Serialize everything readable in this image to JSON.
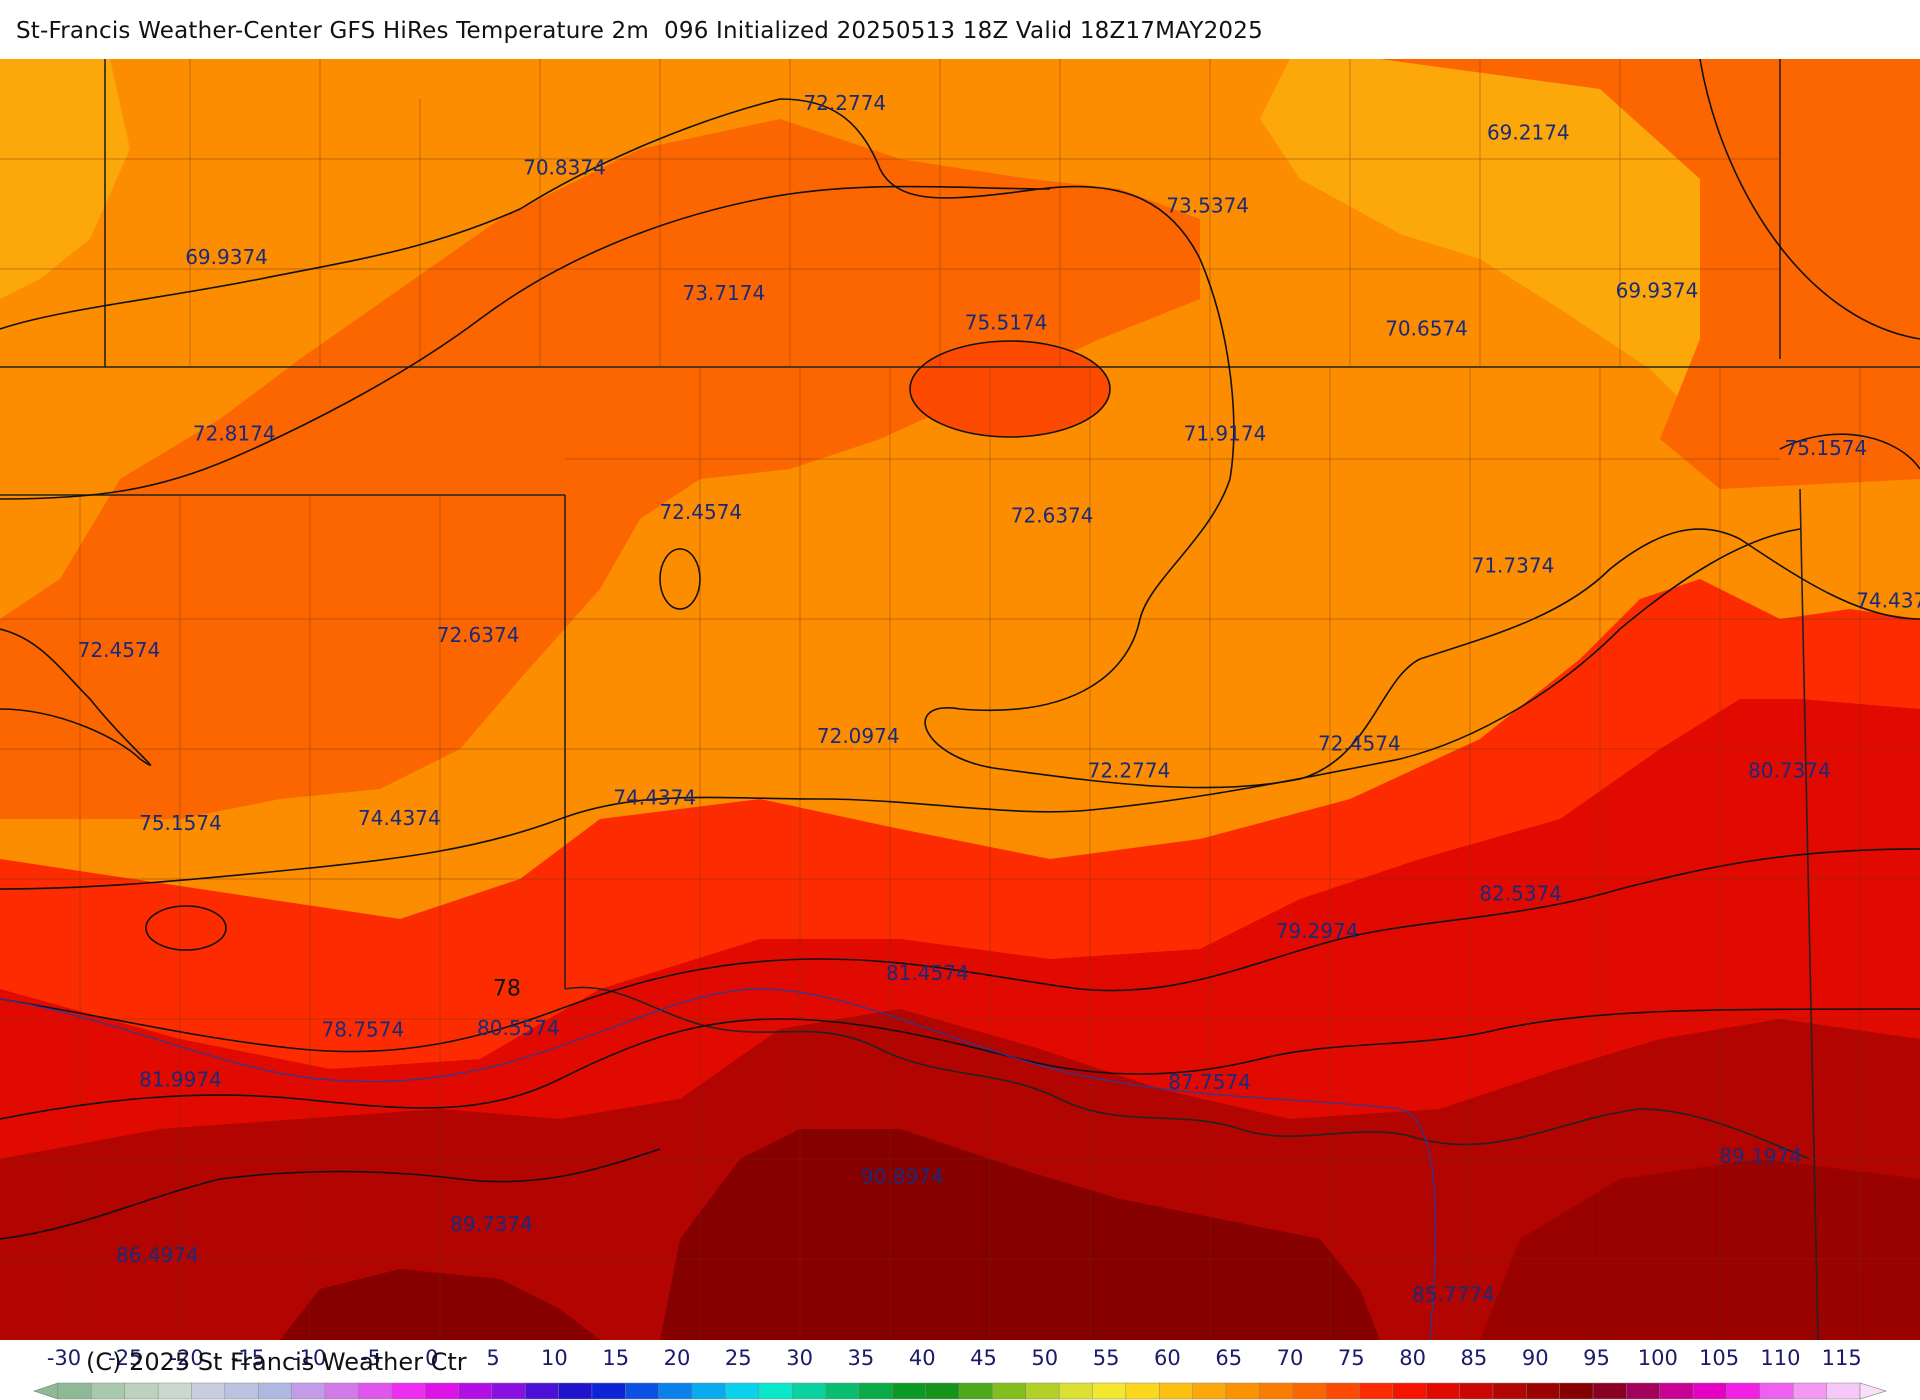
{
  "title": "St-Francis Weather-Center GFS HiRes Temperature 2m  096 Initialized 20250513 18Z Valid 18Z17MAY2025",
  "copyright": "(C) 2025 St Francis Weather Ctr",
  "contour_labels": [
    {
      "text": "72.2774",
      "lon": 0.44,
      "lat": 0.04
    },
    {
      "text": "70.8374",
      "lon": 0.294,
      "lat": 0.09
    },
    {
      "text": "69.2174",
      "lon": 0.796,
      "lat": 0.063
    },
    {
      "text": "73.5374",
      "lon": 0.629,
      "lat": 0.12
    },
    {
      "text": "69.9374",
      "lon": 0.118,
      "lat": 0.16
    },
    {
      "text": "73.7174",
      "lon": 0.377,
      "lat": 0.188
    },
    {
      "text": "75.5174",
      "lon": 0.524,
      "lat": 0.211
    },
    {
      "text": "70.6574",
      "lon": 0.743,
      "lat": 0.216
    },
    {
      "text": "69.9374",
      "lon": 0.863,
      "lat": 0.186
    },
    {
      "text": "72.8174",
      "lon": 0.122,
      "lat": 0.298
    },
    {
      "text": "71.9174",
      "lon": 0.638,
      "lat": 0.298
    },
    {
      "text": "75.1574",
      "lon": 0.951,
      "lat": 0.309
    },
    {
      "text": "72.4574",
      "lon": 0.365,
      "lat": 0.359
    },
    {
      "text": "72.6374",
      "lon": 0.548,
      "lat": 0.362
    },
    {
      "text": "71.7374",
      "lon": 0.788,
      "lat": 0.401
    },
    {
      "text": "74.437",
      "lon": 0.985,
      "lat": 0.428
    },
    {
      "text": "72.4574",
      "lon": 0.062,
      "lat": 0.467
    },
    {
      "text": "72.6374",
      "lon": 0.249,
      "lat": 0.455
    },
    {
      "text": "72.0974",
      "lon": 0.447,
      "lat": 0.534
    },
    {
      "text": "72.2774",
      "lon": 0.588,
      "lat": 0.561
    },
    {
      "text": "72.4574",
      "lon": 0.708,
      "lat": 0.54
    },
    {
      "text": "80.7374",
      "lon": 0.932,
      "lat": 0.561
    },
    {
      "text": "74.4374",
      "lon": 0.341,
      "lat": 0.582
    },
    {
      "text": "75.1574",
      "lon": 0.094,
      "lat": 0.602
    },
    {
      "text": "74.4374",
      "lon": 0.208,
      "lat": 0.598
    },
    {
      "text": "82.5374",
      "lon": 0.792,
      "lat": 0.657
    },
    {
      "text": "79.2974",
      "lon": 0.686,
      "lat": 0.686
    },
    {
      "text": "81.4574",
      "lon": 0.483,
      "lat": 0.719
    },
    {
      "text": "78",
      "lon": 0.264,
      "lat": 0.731
    },
    {
      "text": "78.7574",
      "lon": 0.189,
      "lat": 0.763
    },
    {
      "text": "80.5574",
      "lon": 0.27,
      "lat": 0.762
    },
    {
      "text": "81.9974",
      "lon": 0.094,
      "lat": 0.802
    },
    {
      "text": "87.7574",
      "lon": 0.63,
      "lat": 0.804
    },
    {
      "text": "89.1974",
      "lon": 0.917,
      "lat": 0.862
    },
    {
      "text": "90.8974",
      "lon": 0.47,
      "lat": 0.878
    },
    {
      "text": "89.7374",
      "lon": 0.256,
      "lat": 0.915
    },
    {
      "text": "86.4974",
      "lon": 0.082,
      "lat": 0.939
    },
    {
      "text": "85.7774",
      "lon": 0.757,
      "lat": 0.97
    }
  ],
  "colorbar": {
    "ticks": [
      "-30",
      "-25",
      "-20",
      "-15",
      "-10",
      "-5",
      "0",
      "5",
      "10",
      "15",
      "20",
      "25",
      "30",
      "35",
      "40",
      "45",
      "50",
      "55",
      "60",
      "65",
      "70",
      "75",
      "80",
      "85",
      "90",
      "95",
      "100",
      "105",
      "110",
      "115"
    ],
    "colors": [
      "#8fb894",
      "#a9c9ad",
      "#bcd2bf",
      "#cbd8cf",
      "#c8cde0",
      "#bcc3e0",
      "#aeb8e0",
      "#c49be8",
      "#d27ae8",
      "#e055ee",
      "#ee2cf2",
      "#dd12e6",
      "#b40ee6",
      "#8a10e2",
      "#4a10d8",
      "#1e14cc",
      "#0a24d6",
      "#0a50e2",
      "#0a80ea",
      "#0aaaee",
      "#0ad2ec",
      "#0ae8cc",
      "#0ad2a0",
      "#0abe70",
      "#0aaa46",
      "#0a9a24",
      "#16941a",
      "#4aa81a",
      "#82be1e",
      "#b2d028",
      "#dce032",
      "#f4e82e",
      "#fcd81c",
      "#fcc012",
      "#fca80a",
      "#fc9200",
      "#fc7c00",
      "#fc6600",
      "#fc4a00",
      "#fc2c00",
      "#f41400",
      "#e00a00",
      "#ca0600",
      "#b20400",
      "#9a0200",
      "#860000",
      "#8a0024",
      "#a2005a",
      "#c80094",
      "#e400c4",
      "#f020e4",
      "#f060f0",
      "#f498f4",
      "#f6c8f8"
    ]
  }
}
